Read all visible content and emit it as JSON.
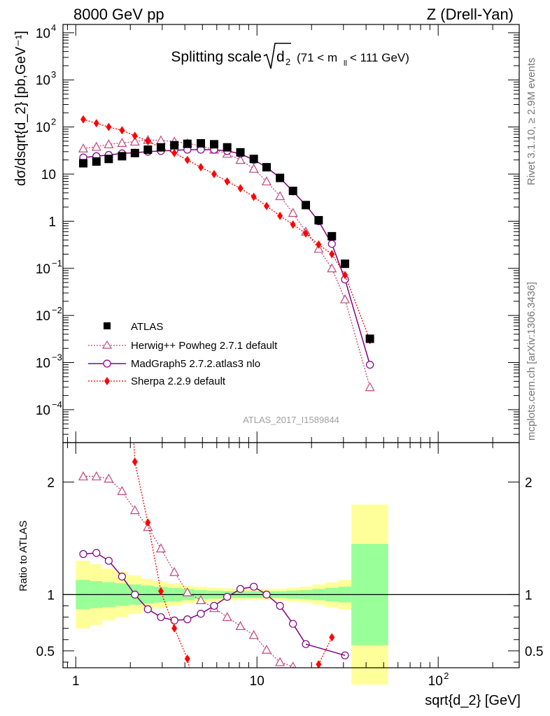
{
  "header": {
    "left": "8000 GeV pp",
    "right": "Z (Drell-Yan)"
  },
  "title": {
    "main": "Splitting scale",
    "sym": "d",
    "sub": "2",
    "range": "(71 < m",
    "range_sub": "ll",
    "range_end": " < 111 GeV)"
  },
  "side": {
    "rivet": "Rivet 3.1.10, ≥ 2.9M events",
    "mcplots": "mcplots.cern.ch [arXiv:1306.3436]"
  },
  "watermark": "ATLAS_2017_I1589844",
  "axes": {
    "ylabel_main": "dσ/dsqrt{d_2} [pb,GeV⁻¹]",
    "ylabel_ratio": "Ratio to ATLAS",
    "xlabel": "sqrt{d_2} [GeV]",
    "x_scale": "log",
    "xlim": [
      0.85,
      280
    ],
    "y_main_scale": "log",
    "ylim_main": [
      2e-05,
      15000
    ],
    "ylim_ratio": [
      0.35,
      2.35
    ],
    "x_ticks": [
      {
        "value": 1,
        "label": "1"
      },
      {
        "value": 10,
        "label": "10"
      },
      {
        "value": 100,
        "label": "10",
        "exp": "2"
      }
    ],
    "y_main_ticks": [
      {
        "value": 0.0001,
        "base": "10",
        "exp": "−4"
      },
      {
        "value": 0.001,
        "base": "10",
        "exp": "−3"
      },
      {
        "value": 0.01,
        "base": "10",
        "exp": "−2"
      },
      {
        "value": 0.1,
        "base": "10",
        "exp": "−1"
      },
      {
        "value": 1,
        "base": "1",
        "exp": ""
      },
      {
        "value": 10,
        "base": "10",
        "exp": ""
      },
      {
        "value": 100,
        "base": "10",
        "exp": "2"
      },
      {
        "value": 1000,
        "base": "10",
        "exp": "3"
      },
      {
        "value": 10000,
        "base": "10",
        "exp": "4"
      }
    ],
    "y_ratio_ticks": [
      {
        "value": 0.5,
        "label": "0.5"
      },
      {
        "value": 1,
        "label": "1"
      },
      {
        "value": 2,
        "label": "2"
      }
    ]
  },
  "legend": {
    "position": "lower-left",
    "entries": [
      {
        "label": "ATLAS",
        "key": "atlas"
      },
      {
        "label": "Herwig++ Powheg 2.7.1 default",
        "key": "herwig"
      },
      {
        "label": "MadGraph5 2.7.2.atlas3 nlo",
        "key": "madgraph"
      },
      {
        "label": "Sherpa 2.2.9 default",
        "key": "sherpa"
      }
    ]
  },
  "colors": {
    "atlas": "#000000",
    "herwig": "#c0467a",
    "madgraph": "#800080",
    "sherpa": "#ff0000",
    "band_inner": "#99ff99",
    "band_outer": "#ffff99"
  },
  "chart_data": {
    "type": "scatter",
    "title": "Splitting scale √d2 (71 < mll < 111 GeV)",
    "xlabel": "sqrt{d_2} [GeV]",
    "ylabel": "dσ/dsqrt{d_2} [pb,GeV⁻¹]",
    "bin_edges": [
      1.0,
      1.2,
      1.4,
      1.65,
      1.95,
      2.3,
      2.7,
      3.2,
      3.8,
      4.5,
      5.3,
      6.3,
      7.4,
      8.8,
      10.4,
      12.3,
      14.5,
      17.1,
      20.2,
      23.8,
      28.1,
      33.2,
      53.0,
      280.0
    ],
    "x": [
      1.1,
      1.3,
      1.52,
      1.8,
      2.12,
      2.5,
      2.95,
      3.5,
      4.13,
      4.9,
      5.8,
      6.85,
      8.1,
      9.6,
      11.3,
      13.4,
      15.8,
      18.6,
      21.9,
      25.9,
      30.6,
      42.0,
      155.0
    ],
    "ylim_main": [
      2e-05,
      15000
    ],
    "ylim_ratio": [
      0.35,
      2.35
    ],
    "series": [
      {
        "name": "ATLAS",
        "key": "atlas",
        "marker": "square",
        "values": [
          17,
          18.5,
          21,
          24,
          28,
          33,
          37,
          41,
          44,
          45,
          43,
          37,
          29,
          21,
          14,
          8.3,
          4.4,
          2.2,
          1.05,
          0.48,
          0.125,
          0.0032,
          null
        ]
      },
      {
        "name": "Herwig++ Powheg 2.7.1 default",
        "key": "herwig",
        "marker": "triangle",
        "line": "dotted",
        "values": [
          35,
          38,
          43,
          46,
          49,
          53,
          52,
          49,
          45,
          40,
          33,
          27,
          20,
          13,
          7,
          3.4,
          1.5,
          0.6,
          0.26,
          0.1,
          0.022,
          0.0003,
          null
        ]
      },
      {
        "name": "MadGraph5 2.7.2.atlas3 nlo",
        "key": "madgraph",
        "marker": "circle",
        "line": "solid",
        "values": [
          22.5,
          24,
          25.5,
          27.5,
          28.5,
          30,
          31,
          32,
          33,
          33,
          33,
          31,
          27,
          20,
          14,
          8.3,
          4.3,
          2.2,
          1.0,
          0.33,
          0.058,
          0.0009,
          null
        ]
      },
      {
        "name": "Sherpa 2.2.9 default",
        "key": "sherpa",
        "marker": "diamond",
        "line": "dotted",
        "values": [
          145,
          120,
          100,
          85,
          65,
          50,
          36,
          28,
          20,
          14,
          10,
          7,
          5,
          3.3,
          2.1,
          1.3,
          0.85,
          0.55,
          0.32,
          0.2,
          0.072,
          0.003,
          null
        ]
      }
    ],
    "ratio": {
      "x": [
        1.1,
        1.3,
        1.52,
        1.8,
        2.12,
        2.5,
        2.95,
        3.5,
        4.13,
        4.9,
        5.8,
        6.85,
        8.1,
        9.6,
        11.3,
        13.4,
        15.8,
        18.6,
        21.9,
        25.9,
        30.6,
        42.0
      ],
      "herwig": [
        2.05,
        2.05,
        2.03,
        1.92,
        1.75,
        1.6,
        1.41,
        1.2,
        1.02,
        0.95,
        0.88,
        0.8,
        0.72,
        0.64,
        0.51,
        0.4,
        0.36,
        null,
        null,
        null,
        null,
        null
      ],
      "madgraph": [
        1.36,
        1.37,
        1.3,
        1.16,
        1.0,
        0.87,
        0.8,
        0.77,
        0.78,
        0.83,
        0.9,
        0.98,
        1.05,
        1.07,
        1.0,
        0.9,
        0.74,
        0.56,
        null,
        null,
        0.46,
        null
      ],
      "sherpa": [
        null,
        null,
        null,
        null,
        2.18,
        1.64,
        1.03,
        0.7,
        0.43,
        null,
        null,
        null,
        null,
        null,
        null,
        null,
        null,
        null,
        0.38,
        0.62,
        null,
        null
      ],
      "band_inner_half": [
        0.13,
        0.12,
        0.11,
        0.1,
        0.09,
        0.08,
        0.07,
        0.06,
        0.05,
        0.04,
        0.035,
        0.03,
        0.03,
        0.03,
        0.03,
        0.03,
        0.035,
        0.04,
        0.05,
        0.06,
        0.07,
        0.45
      ],
      "band_outer_half": [
        0.3,
        0.27,
        0.23,
        0.2,
        0.17,
        0.14,
        0.12,
        0.1,
        0.08,
        0.07,
        0.06,
        0.055,
        0.05,
        0.05,
        0.05,
        0.05,
        0.06,
        0.07,
        0.09,
        0.11,
        0.13,
        0.8
      ]
    }
  }
}
